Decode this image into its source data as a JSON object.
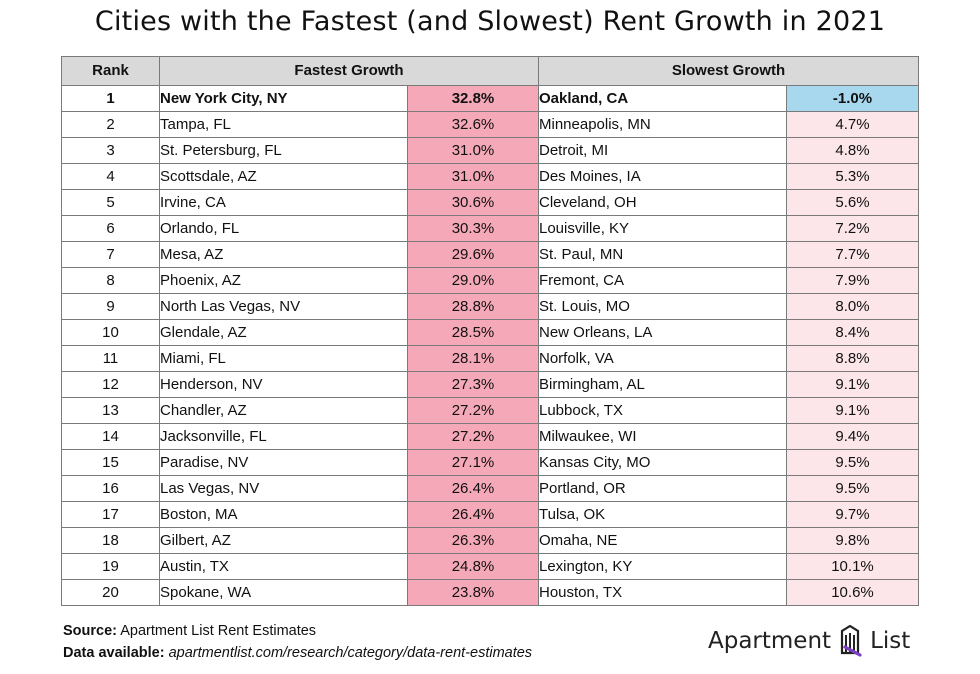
{
  "title": "Cities with the Fastest (and Slowest) Rent Growth in 2021",
  "chart_data": {
    "type": "table",
    "columns": [
      "Rank",
      "Fastest Growth",
      "Slowest Growth"
    ],
    "rows": [
      {
        "rank": "1",
        "fast_city": "New York City, NY",
        "fast_value": "32.8%",
        "slow_city": "Oakland, CA",
        "slow_value": "-1.0%"
      },
      {
        "rank": "2",
        "fast_city": "Tampa, FL",
        "fast_value": "32.6%",
        "slow_city": "Minneapolis, MN",
        "slow_value": "4.7%"
      },
      {
        "rank": "3",
        "fast_city": "St. Petersburg, FL",
        "fast_value": "31.0%",
        "slow_city": "Detroit, MI",
        "slow_value": "4.8%"
      },
      {
        "rank": "4",
        "fast_city": "Scottsdale, AZ",
        "fast_value": "31.0%",
        "slow_city": "Des Moines, IA",
        "slow_value": "5.3%"
      },
      {
        "rank": "5",
        "fast_city": "Irvine, CA",
        "fast_value": "30.6%",
        "slow_city": "Cleveland, OH",
        "slow_value": "5.6%"
      },
      {
        "rank": "6",
        "fast_city": "Orlando, FL",
        "fast_value": "30.3%",
        "slow_city": "Louisville, KY",
        "slow_value": "7.2%"
      },
      {
        "rank": "7",
        "fast_city": "Mesa, AZ",
        "fast_value": "29.6%",
        "slow_city": "St. Paul, MN",
        "slow_value": "7.7%"
      },
      {
        "rank": "8",
        "fast_city": "Phoenix, AZ",
        "fast_value": "29.0%",
        "slow_city": "Fremont, CA",
        "slow_value": "7.9%"
      },
      {
        "rank": "9",
        "fast_city": "North Las Vegas, NV",
        "fast_value": "28.8%",
        "slow_city": "St. Louis, MO",
        "slow_value": "8.0%"
      },
      {
        "rank": "10",
        "fast_city": "Glendale, AZ",
        "fast_value": "28.5%",
        "slow_city": "New Orleans, LA",
        "slow_value": "8.4%"
      },
      {
        "rank": "11",
        "fast_city": "Miami, FL",
        "fast_value": "28.1%",
        "slow_city": "Norfolk, VA",
        "slow_value": "8.8%"
      },
      {
        "rank": "12",
        "fast_city": "Henderson, NV",
        "fast_value": "27.3%",
        "slow_city": "Birmingham, AL",
        "slow_value": "9.1%"
      },
      {
        "rank": "13",
        "fast_city": "Chandler, AZ",
        "fast_value": "27.2%",
        "slow_city": "Lubbock, TX",
        "slow_value": "9.1%"
      },
      {
        "rank": "14",
        "fast_city": "Jacksonville, FL",
        "fast_value": "27.2%",
        "slow_city": "Milwaukee, WI",
        "slow_value": "9.4%"
      },
      {
        "rank": "15",
        "fast_city": "Paradise, NV",
        "fast_value": "27.1%",
        "slow_city": "Kansas City, MO",
        "slow_value": "9.5%"
      },
      {
        "rank": "16",
        "fast_city": "Las Vegas, NV",
        "fast_value": "26.4%",
        "slow_city": "Portland, OR",
        "slow_value": "9.5%"
      },
      {
        "rank": "17",
        "fast_city": "Boston, MA",
        "fast_value": "26.4%",
        "slow_city": "Tulsa, OK",
        "slow_value": "9.7%"
      },
      {
        "rank": "18",
        "fast_city": "Gilbert, AZ",
        "fast_value": "26.3%",
        "slow_city": "Omaha, NE",
        "slow_value": "9.8%"
      },
      {
        "rank": "19",
        "fast_city": "Austin, TX",
        "fast_value": "24.8%",
        "slow_city": "Lexington, KY",
        "slow_value": "10.1%"
      },
      {
        "rank": "20",
        "fast_city": "Spokane, WA",
        "fast_value": "23.8%",
        "slow_city": "Houston, TX",
        "slow_value": "10.6%"
      }
    ]
  },
  "colors": {
    "fast_value_bg": "#f5a9b8",
    "slow_value_bg": "#fce6ea",
    "slow_top_bg": "#a7d8ee",
    "header_bg": "#d9d9d9"
  },
  "footer": {
    "source_label": "Source:",
    "source_text": "Apartment List Rent Estimates",
    "data_label": "Data available:",
    "data_text": "apartmentlist.com/research/category/data-rent-estimates"
  },
  "logo": {
    "word1": "Apartment",
    "word2": "List",
    "icon": "apartment-list-logo-icon"
  }
}
